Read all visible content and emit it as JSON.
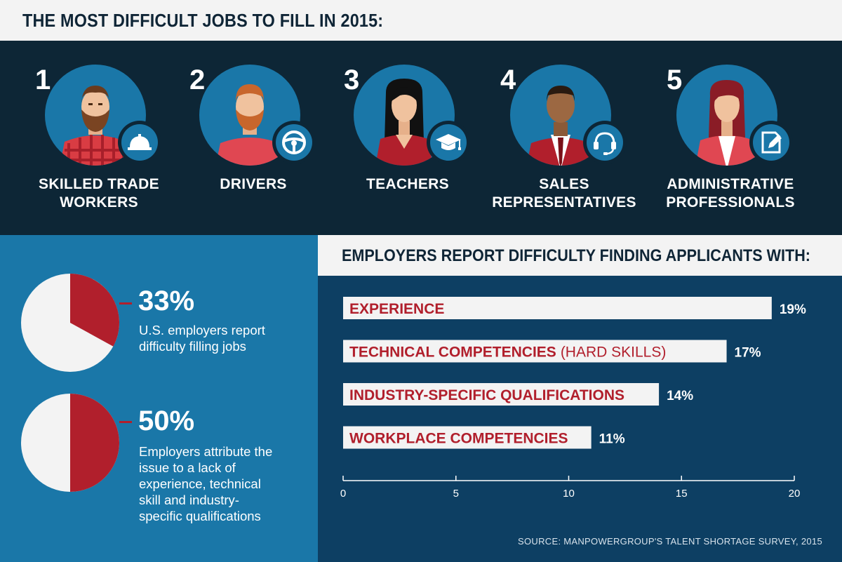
{
  "header": {
    "title": "THE MOST DIFFICULT JOBS TO FILL IN 2015:"
  },
  "jobs": [
    {
      "rank": "1",
      "label": "SKILLED TRADE\nWORKERS",
      "badge_icon": "hard-hat-icon"
    },
    {
      "rank": "2",
      "label": "DRIVERS",
      "badge_icon": "steering-wheel-icon"
    },
    {
      "rank": "3",
      "label": "TEACHERS",
      "badge_icon": "graduation-cap-icon"
    },
    {
      "rank": "4",
      "label": "SALES\nREPRESENTATIVES",
      "badge_icon": "headset-icon"
    },
    {
      "rank": "5",
      "label": "ADMINISTRATIVE\nPROFESSIONALS",
      "badge_icon": "edit-document-icon"
    }
  ],
  "stats": [
    {
      "value": "33%",
      "fraction": 0.33,
      "description": "U.S. employers report difficulty filling jobs"
    },
    {
      "value": "50%",
      "fraction": 0.5,
      "description": "Employers attribute the issue to a lack of experience, technical skill and industry-specific qualifications"
    }
  ],
  "chart_data": {
    "type": "bar",
    "orientation": "horizontal",
    "title": "EMPLOYERS REPORT DIFFICULTY FINDING APPLICANTS WITH:",
    "categories": [
      {
        "label": "EXPERIENCE",
        "sublabel": ""
      },
      {
        "label": "TECHNICAL COMPETENCIES",
        "sublabel": "(HARD SKILLS)"
      },
      {
        "label": "INDUSTRY-SPECIFIC QUALIFICATIONS",
        "sublabel": ""
      },
      {
        "label": "WORKPLACE COMPETENCIES",
        "sublabel": ""
      }
    ],
    "values": [
      19,
      17,
      14,
      11
    ],
    "value_labels": [
      "19%",
      "17%",
      "14%",
      "11%"
    ],
    "xlim": [
      0,
      20
    ],
    "xticks": [
      0,
      5,
      10,
      15,
      20
    ],
    "grid": false,
    "source": "SOURCE: MANPOWERGROUP'S TALENT SHORTAGE SURVEY, 2015"
  },
  "colors": {
    "dark_navy": "#0d2636",
    "accent_red": "#b11f2c",
    "panel_blue": "#1a77a8",
    "chart_navy": "#0d3f63",
    "light_gray": "#f3f3f3"
  }
}
